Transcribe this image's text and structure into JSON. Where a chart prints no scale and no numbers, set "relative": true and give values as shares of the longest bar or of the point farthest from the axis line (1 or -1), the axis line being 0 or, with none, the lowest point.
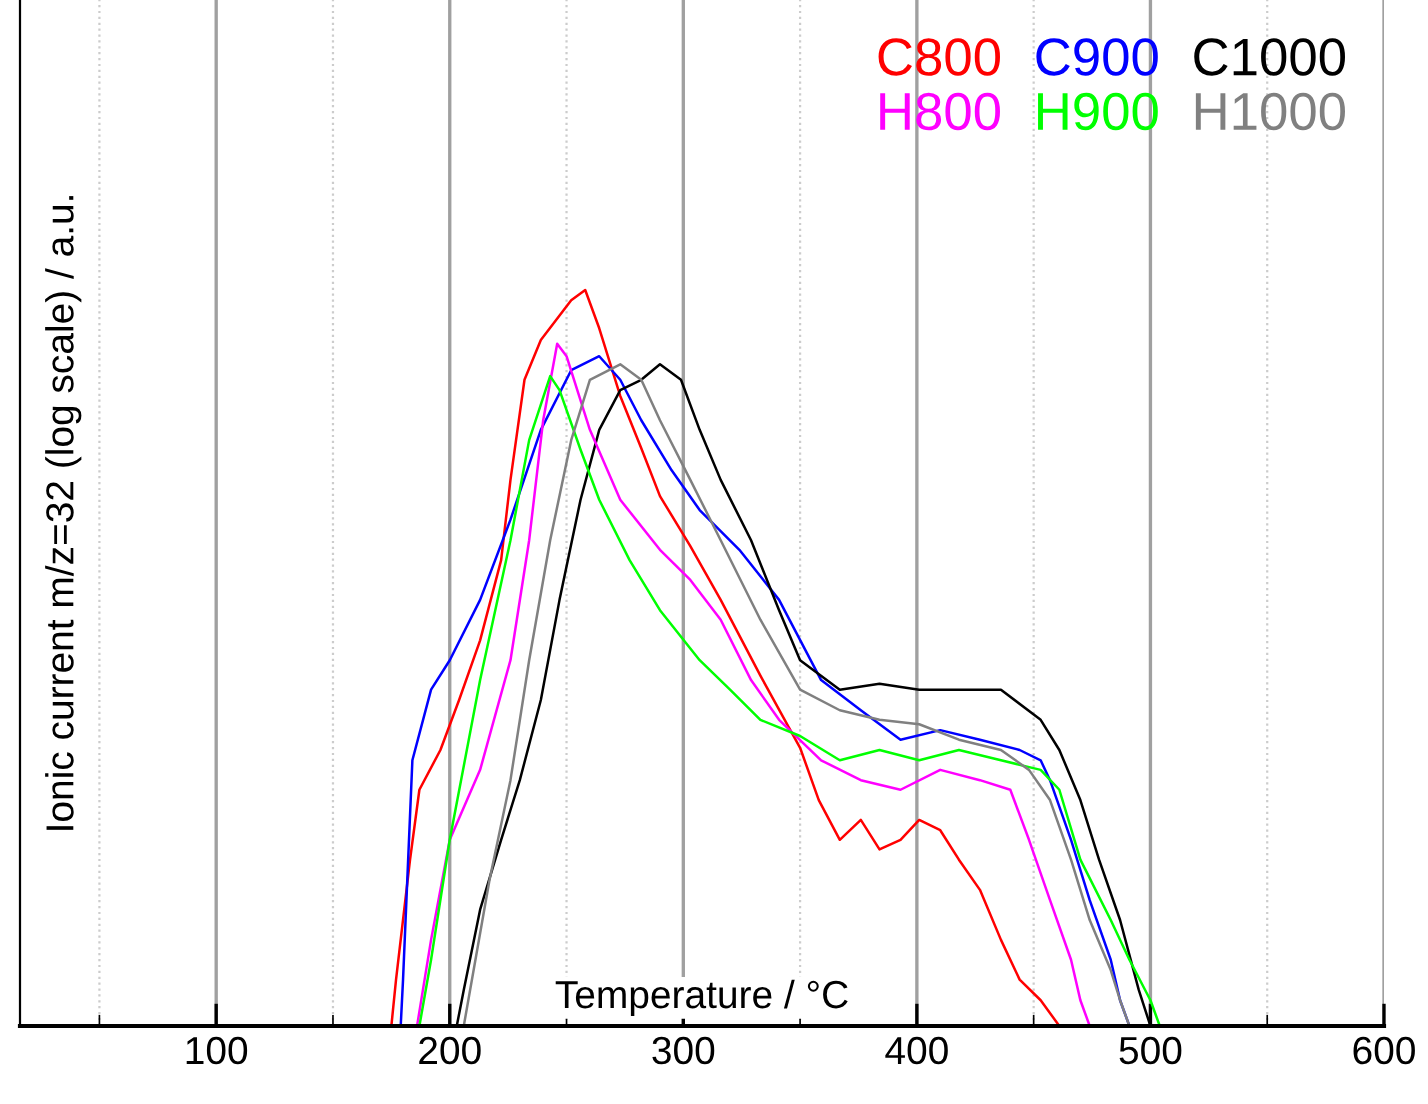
{
  "chart_data": {
    "type": "line",
    "xlabel": "Temperature / °C",
    "ylabel": "Ionic current m/z=32 (log scale) / a.u.",
    "relative": true,
    "xlim": [
      16,
      600
    ],
    "xticks": [
      100,
      200,
      300,
      400,
      500,
      600
    ],
    "grid": "x",
    "legend": "top right",
    "marker": "none",
    "line_style": "solid",
    "series": [
      {
        "name": "C800",
        "color": "#ff0000",
        "x": [
          175,
          177,
          183,
          187,
          196,
          204,
          213,
          222,
          226,
          232,
          239,
          252,
          258,
          264,
          273,
          282,
          290,
          303,
          316,
          333,
          350,
          358,
          367,
          376,
          384,
          393,
          401,
          410,
          418,
          427,
          436,
          444,
          453,
          461
        ],
        "values": [
          0,
          0.063,
          0.226,
          0.321,
          0.375,
          0.443,
          0.524,
          0.633,
          0.742,
          0.878,
          0.932,
          0.986,
          1,
          0.948,
          0.856,
          0.785,
          0.72,
          0.652,
          0.579,
          0.476,
          0.378,
          0.307,
          0.253,
          0.28,
          0.24,
          0.253,
          0.28,
          0.266,
          0.226,
          0.185,
          0.117,
          0.063,
          0.035,
          0
        ]
      },
      {
        "name": "C900",
        "color": "#0000ff",
        "x": [
          179,
          180,
          184,
          192,
          200,
          213,
          226,
          239,
          252,
          264,
          273,
          282,
          295,
          307,
          324,
          341,
          359,
          376,
          393,
          410,
          427,
          444,
          453,
          457,
          466,
          474,
          483,
          487,
          491
        ],
        "values": [
          0,
          0.063,
          0.361,
          0.457,
          0.497,
          0.579,
          0.688,
          0.81,
          0.891,
          0.91,
          0.878,
          0.823,
          0.755,
          0.701,
          0.647,
          0.579,
          0.47,
          0.429,
          0.389,
          0.402,
          0.389,
          0.375,
          0.361,
          0.334,
          0.253,
          0.171,
          0.09,
          0.035,
          0
        ]
      },
      {
        "name": "C1000",
        "color": "#000000",
        "x": [
          203,
          206,
          213,
          222,
          230,
          239,
          247,
          256,
          264,
          273,
          282,
          290,
          299,
          307,
          316,
          329,
          341,
          350,
          367,
          384,
          401,
          418,
          436,
          453,
          461,
          470,
          478,
          487,
          495,
          500
        ],
        "values": [
          0,
          0.049,
          0.158,
          0.253,
          0.334,
          0.443,
          0.579,
          0.715,
          0.81,
          0.864,
          0.878,
          0.899,
          0.878,
          0.81,
          0.742,
          0.66,
          0.565,
          0.497,
          0.457,
          0.465,
          0.457,
          0.457,
          0.457,
          0.416,
          0.375,
          0.307,
          0.226,
          0.144,
          0.049,
          0
        ]
      },
      {
        "name": "H800",
        "color": "#ff00ff",
        "x": [
          186,
          192,
          200,
          213,
          226,
          234,
          240,
          246,
          250,
          260,
          273,
          290,
          303,
          316,
          329,
          341,
          359,
          376,
          393,
          410,
          427,
          440,
          448,
          457,
          466,
          470,
          474
        ],
        "values": [
          0,
          0.117,
          0.253,
          0.348,
          0.497,
          0.66,
          0.823,
          0.927,
          0.91,
          0.81,
          0.715,
          0.647,
          0.606,
          0.552,
          0.47,
          0.416,
          0.361,
          0.334,
          0.321,
          0.348,
          0.334,
          0.321,
          0.253,
          0.171,
          0.09,
          0.035,
          0
        ]
      },
      {
        "name": "H900",
        "color": "#00ff00",
        "x": [
          187,
          192,
          200,
          213,
          226,
          234,
          243,
          247,
          256,
          264,
          277,
          290,
          307,
          320,
          333,
          350,
          367,
          384,
          401,
          418,
          436,
          453,
          461,
          470,
          483,
          491,
          500,
          504
        ],
        "values": [
          0,
          0.09,
          0.253,
          0.47,
          0.66,
          0.796,
          0.883,
          0.864,
          0.783,
          0.715,
          0.633,
          0.565,
          0.497,
          0.457,
          0.416,
          0.394,
          0.361,
          0.375,
          0.361,
          0.375,
          0.361,
          0.348,
          0.321,
          0.226,
          0.144,
          0.09,
          0.035,
          0
        ]
      },
      {
        "name": "H1000",
        "color": "#808080",
        "x": [
          206,
          211,
          217,
          226,
          234,
          243,
          252,
          260,
          273,
          282,
          290,
          303,
          316,
          333,
          350,
          367,
          384,
          401,
          418,
          436,
          448,
          457,
          466,
          474,
          483,
          487,
          491
        ],
        "values": [
          0,
          0.09,
          0.198,
          0.334,
          0.497,
          0.66,
          0.796,
          0.878,
          0.899,
          0.878,
          0.823,
          0.742,
          0.66,
          0.552,
          0.457,
          0.429,
          0.416,
          0.41,
          0.389,
          0.375,
          0.348,
          0.307,
          0.226,
          0.144,
          0.076,
          0.035,
          0
        ]
      }
    ]
  }
}
